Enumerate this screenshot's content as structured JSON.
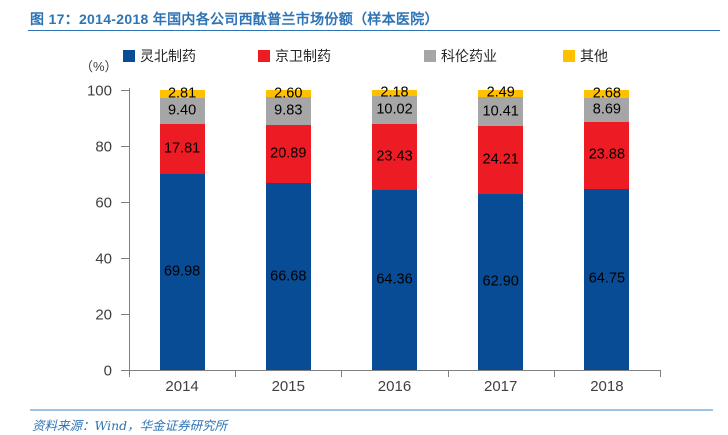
{
  "title": "图 17：2014-2018 年国内各公司西酞普兰市场份额（样本医院）",
  "unit_label": "（%）",
  "source_note": "资料来源：Wind，华金证券研究所",
  "colors": {
    "title_text": "#2E74B5",
    "title_underline": "#2E74B5",
    "footer_line": "#9DC3E6",
    "source_text": "#2E74B5",
    "axis": "#7f7f7f"
  },
  "chart_data": {
    "type": "bar",
    "stacked": true,
    "title": "2014-2018 年国内各公司西酞普兰市场份额（样本医院）",
    "categories": [
      "2014",
      "2015",
      "2016",
      "2017",
      "2018"
    ],
    "series": [
      {
        "name": "灵北制药",
        "color": "#084C96",
        "values": [
          69.98,
          66.68,
          64.36,
          62.9,
          64.75
        ]
      },
      {
        "name": "京卫制药",
        "color": "#ED1C24",
        "values": [
          17.81,
          20.89,
          23.43,
          24.21,
          23.88
        ]
      },
      {
        "name": "科伦药业",
        "color": "#A6A6A6",
        "values": [
          9.4,
          9.83,
          10.02,
          10.41,
          8.69
        ]
      },
      {
        "name": "其他",
        "color": "#FFC000",
        "values": [
          2.81,
          2.6,
          2.18,
          2.49,
          2.68
        ]
      }
    ],
    "ylabel": "（%）",
    "ylim": [
      0,
      100
    ],
    "yticks": [
      0,
      20,
      40,
      60,
      80,
      100
    ],
    "grid": false,
    "legend_position": "top",
    "data_labels": "inside-center",
    "label_decimals": 2
  }
}
